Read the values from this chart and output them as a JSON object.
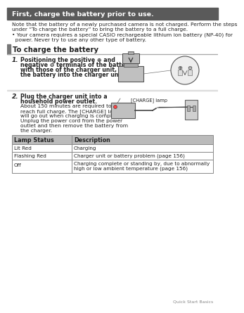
{
  "title": "First, charge the battery prior to use.",
  "title_bg": "#5a5a5a",
  "title_color": "#ffffff",
  "page_bg": "#ffffff",
  "section_header": "To charge the battery",
  "section_header_bg": "#777777",
  "note_line1": "Note that the battery of a newly purchased camera is not charged. Perform the steps",
  "note_line2": "under “To charge the battery” to bring the battery to a full charge.",
  "bullet_line1": "• Your camera requires a special CASIO rechargeable lithium ion battery (NP-40) for",
  "bullet_line2": "  power. Never try to use any other type of battery.",
  "step1_num": "1.",
  "step1_line1": "Positioning the positive ⊕ and",
  "step1_line2": "negative ⊖ terminals of the battery",
  "step1_line3": "with those of the charger unit, load",
  "step1_line4": "the battery into the charger unit.",
  "step2_num": "2.",
  "step2_bold1": "Plug the charger unit into a",
  "step2_bold2": "household power outlet.",
  "step2_text": "About 150 minutes are required to\nreach full charge. The [CHARGE] lamp\nwill go out when charging is complete.\nUnplug the power cord from the power\noutlet and then remove the battery from\nthe charger.",
  "charge_lamp_label": "[CHARGE] lamp",
  "table_header": [
    "Lamp Status",
    "Description"
  ],
  "table_rows": [
    [
      "Lit Red",
      "Charging"
    ],
    [
      "Flashing Red",
      "Charger unit or battery problem (page 156)"
    ],
    [
      "Off",
      "Charging complete or standing by, due to abnormally\nhigh or low ambient temperature (page 156)"
    ]
  ],
  "table_header_bg": "#bbbbbb",
  "table_row_bgs": [
    "#ffffff",
    "#ffffff",
    "#ffffff"
  ],
  "footer_text": "Quick Start Basics",
  "text_color": "#222222",
  "gray_text": "#888888",
  "border_color": "#888888",
  "line_color": "#aaaaaa"
}
